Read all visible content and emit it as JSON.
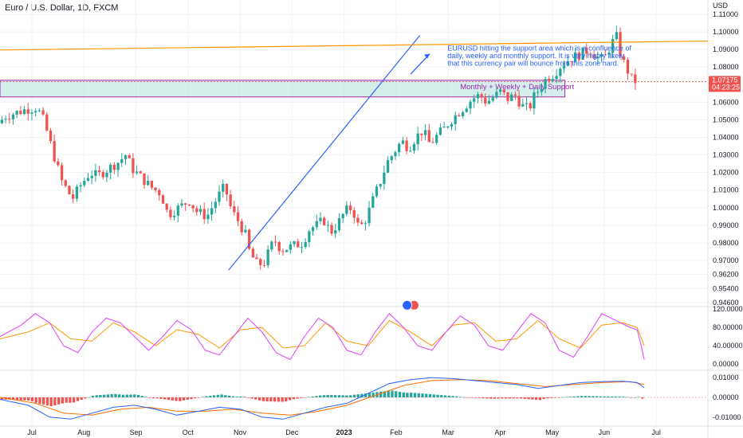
{
  "title": "Euro / U.S. Dollar, 1D, FXCM",
  "currency_label": "USD",
  "annotations": {
    "note_lines": [
      "EURUSD hitting the support area which is a confluence of",
      "daily, weekly and monthly support. It is very highly likely",
      "that this currency pair will bounce from this zone hard."
    ],
    "zone_label": "Monthly + Weekly + Daily Support",
    "price_badge": "1.07175",
    "countdown": "04:23:25"
  },
  "colors": {
    "bull": "#26a69a",
    "bear": "#ef5350",
    "trendline": "#2962ff",
    "resistance": "#ff9800",
    "zone_fill": "#b2dfdb",
    "zone_border": "#9c27b0",
    "osc_k": "#e040fb",
    "osc_d": "#ff9800",
    "macd": "#2962ff",
    "signal": "#ff6d00",
    "grid": "#f0f3fa"
  },
  "chart_data": {
    "type": "candlestick",
    "symbol": "EUR/USD",
    "timeframe": "1D",
    "x_axis_labels": [
      "Jul",
      "Aug",
      "Sep",
      "Oct",
      "Nov",
      "Dec",
      "2023",
      "Feb",
      "Mar",
      "Apr",
      "May",
      "Jun",
      "Jul"
    ],
    "price_axis": {
      "ticks": [
        "1.11000",
        "1.10000",
        "1.09000",
        "1.08000",
        "1.06000",
        "1.05000",
        "1.04000",
        "1.03000",
        "1.02000",
        "1.01000",
        "1.00000",
        "0.99000",
        "0.98000",
        "0.97000",
        "0.96200",
        "0.95400",
        "0.94600"
      ],
      "ylim": [
        0.946,
        1.11
      ]
    },
    "stoch_axis": {
      "ticks": [
        "120.00000",
        "80.00000",
        "40.00000",
        "0.00000"
      ],
      "ylim": [
        -10,
        120
      ]
    },
    "macd_axis": {
      "ticks": [
        "0.01000",
        "0.00000",
        "-0.01000"
      ],
      "ylim": [
        -0.0125,
        0.0125
      ]
    },
    "current_price": 1.07175,
    "support_zone": [
      1.063,
      1.0725
    ],
    "resistance_line": [
      1.0897,
      1.0948
    ],
    "trendline": [
      0.9645,
      1.098
    ],
    "price_path": [
      [
        0,
        1.048
      ],
      [
        0.01,
        1.052
      ],
      [
        0.025,
        1.054
      ],
      [
        0.04,
        1.056
      ],
      [
        0.055,
        1.057
      ],
      [
        0.065,
        1.049
      ],
      [
        0.08,
        1.028
      ],
      [
        0.09,
        1.015
      ],
      [
        0.105,
        1.005
      ],
      [
        0.115,
        1.012
      ],
      [
        0.13,
        1.02
      ],
      [
        0.14,
        1.018
      ],
      [
        0.155,
        1.022
      ],
      [
        0.17,
        1.026
      ],
      [
        0.18,
        1.03
      ],
      [
        0.19,
        1.022
      ],
      [
        0.2,
        1.018
      ],
      [
        0.215,
        1.012
      ],
      [
        0.23,
        1.008
      ],
      [
        0.24,
        0.996
      ],
      [
        0.255,
        1.0
      ],
      [
        0.27,
        1.004
      ],
      [
        0.28,
        0.998
      ],
      [
        0.295,
        0.995
      ],
      [
        0.31,
        1.006
      ],
      [
        0.32,
        1.012
      ],
      [
        0.33,
        0.998
      ],
      [
        0.34,
        0.992
      ],
      [
        0.35,
        0.984
      ],
      [
        0.355,
        0.975
      ],
      [
        0.365,
        0.968
      ],
      [
        0.375,
        0.968
      ],
      [
        0.39,
        0.982
      ],
      [
        0.4,
        0.976
      ],
      [
        0.415,
        0.978
      ],
      [
        0.43,
        0.98
      ],
      [
        0.44,
        0.988
      ],
      [
        0.45,
        0.99
      ],
      [
        0.46,
        0.993
      ],
      [
        0.47,
        0.986
      ],
      [
        0.48,
        0.991
      ],
      [
        0.49,
        0.998
      ],
      [
        0.5,
        1.0
      ],
      [
        0.51,
        0.988
      ],
      [
        0.52,
        0.994
      ],
      [
        0.53,
        1.005
      ],
      [
        0.54,
        1.015
      ],
      [
        0.55,
        1.026
      ],
      [
        0.56,
        1.032
      ],
      [
        0.57,
        1.038
      ],
      [
        0.58,
        1.034
      ],
      [
        0.59,
        1.04
      ],
      [
        0.6,
        1.044
      ],
      [
        0.61,
        1.036
      ],
      [
        0.62,
        1.041
      ],
      [
        0.63,
        1.045
      ],
      [
        0.64,
        1.05
      ],
      [
        0.65,
        1.054
      ],
      [
        0.66,
        1.058
      ],
      [
        0.67,
        1.062
      ],
      [
        0.68,
        1.064
      ],
      [
        0.69,
        1.06
      ],
      [
        0.7,
        1.063
      ],
      [
        0.71,
        1.066
      ],
      [
        0.72,
        1.062
      ],
      [
        0.73,
        1.064
      ],
      [
        0.74,
        1.058
      ],
      [
        0.75,
        1.056
      ],
      [
        0.755,
        1.062
      ],
      [
        0.765,
        1.068
      ],
      [
        0.775,
        1.074
      ],
      [
        0.785,
        1.076
      ],
      [
        0.795,
        1.081
      ],
      [
        0.805,
        1.084
      ],
      [
        0.815,
        1.086
      ],
      [
        0.825,
        1.088
      ],
      [
        0.835,
        1.09
      ],
      [
        0.845,
        1.086
      ],
      [
        0.855,
        1.084
      ],
      [
        0.865,
        1.092
      ],
      [
        0.873,
        1.098
      ],
      [
        0.88,
        1.086
      ],
      [
        0.888,
        1.079
      ],
      [
        0.896,
        1.072
      ]
    ],
    "stoch_path": [
      [
        0,
        60
      ],
      [
        0.03,
        85
      ],
      [
        0.05,
        110
      ],
      [
        0.07,
        90
      ],
      [
        0.09,
        40
      ],
      [
        0.11,
        25
      ],
      [
        0.13,
        70
      ],
      [
        0.15,
        100
      ],
      [
        0.17,
        90
      ],
      [
        0.19,
        60
      ],
      [
        0.21,
        30
      ],
      [
        0.23,
        60
      ],
      [
        0.25,
        95
      ],
      [
        0.27,
        75
      ],
      [
        0.29,
        30
      ],
      [
        0.31,
        20
      ],
      [
        0.33,
        60
      ],
      [
        0.35,
        100
      ],
      [
        0.37,
        70
      ],
      [
        0.39,
        25
      ],
      [
        0.41,
        10
      ],
      [
        0.43,
        60
      ],
      [
        0.45,
        100
      ],
      [
        0.47,
        80
      ],
      [
        0.49,
        30
      ],
      [
        0.51,
        20
      ],
      [
        0.53,
        70
      ],
      [
        0.55,
        110
      ],
      [
        0.57,
        80
      ],
      [
        0.59,
        40
      ],
      [
        0.61,
        30
      ],
      [
        0.63,
        70
      ],
      [
        0.65,
        105
      ],
      [
        0.67,
        85
      ],
      [
        0.69,
        40
      ],
      [
        0.71,
        30
      ],
      [
        0.73,
        70
      ],
      [
        0.75,
        110
      ],
      [
        0.77,
        90
      ],
      [
        0.79,
        30
      ],
      [
        0.81,
        15
      ],
      [
        0.83,
        60
      ],
      [
        0.85,
        110
      ],
      [
        0.87,
        95
      ],
      [
        0.89,
        80
      ],
      [
        0.9,
        75
      ],
      [
        0.905,
        45
      ],
      [
        0.91,
        10
      ]
    ],
    "stoch_d_path": [
      [
        0,
        55
      ],
      [
        0.04,
        70
      ],
      [
        0.07,
        90
      ],
      [
        0.1,
        55
      ],
      [
        0.13,
        50
      ],
      [
        0.16,
        90
      ],
      [
        0.19,
        70
      ],
      [
        0.22,
        40
      ],
      [
        0.25,
        75
      ],
      [
        0.28,
        65
      ],
      [
        0.31,
        35
      ],
      [
        0.34,
        75
      ],
      [
        0.37,
        80
      ],
      [
        0.4,
        35
      ],
      [
        0.43,
        40
      ],
      [
        0.46,
        90
      ],
      [
        0.49,
        50
      ],
      [
        0.52,
        40
      ],
      [
        0.55,
        95
      ],
      [
        0.58,
        70
      ],
      [
        0.61,
        40
      ],
      [
        0.64,
        85
      ],
      [
        0.67,
        90
      ],
      [
        0.7,
        50
      ],
      [
        0.73,
        55
      ],
      [
        0.76,
        95
      ],
      [
        0.79,
        55
      ],
      [
        0.82,
        35
      ],
      [
        0.85,
        85
      ],
      [
        0.88,
        90
      ],
      [
        0.9,
        80
      ],
      [
        0.91,
        40
      ]
    ],
    "macd_path": [
      [
        0,
        -0.001
      ],
      [
        0.04,
        -0.004
      ],
      [
        0.07,
        -0.01
      ],
      [
        0.1,
        -0.011
      ],
      [
        0.13,
        -0.008
      ],
      [
        0.16,
        -0.005
      ],
      [
        0.19,
        -0.004
      ],
      [
        0.22,
        -0.006
      ],
      [
        0.25,
        -0.009
      ],
      [
        0.28,
        -0.007
      ],
      [
        0.31,
        -0.005
      ],
      [
        0.34,
        -0.006
      ],
      [
        0.37,
        -0.01
      ],
      [
        0.4,
        -0.011
      ],
      [
        0.43,
        -0.008
      ],
      [
        0.46,
        -0.005
      ],
      [
        0.49,
        -0.003
      ],
      [
        0.52,
        0.002
      ],
      [
        0.55,
        0.007
      ],
      [
        0.58,
        0.009
      ],
      [
        0.61,
        0.01
      ],
      [
        0.64,
        0.0095
      ],
      [
        0.67,
        0.0085
      ],
      [
        0.7,
        0.0075
      ],
      [
        0.73,
        0.0065
      ],
      [
        0.76,
        0.0045
      ],
      [
        0.79,
        0.006
      ],
      [
        0.82,
        0.0075
      ],
      [
        0.85,
        0.008
      ],
      [
        0.88,
        0.0082
      ],
      [
        0.9,
        0.0075
      ],
      [
        0.91,
        0.005
      ]
    ],
    "signal_path": [
      [
        0,
        0
      ],
      [
        0.05,
        -0.003
      ],
      [
        0.09,
        -0.008
      ],
      [
        0.13,
        -0.009
      ],
      [
        0.17,
        -0.006
      ],
      [
        0.21,
        -0.005
      ],
      [
        0.25,
        -0.007
      ],
      [
        0.29,
        -0.007
      ],
      [
        0.33,
        -0.006
      ],
      [
        0.37,
        -0.008
      ],
      [
        0.41,
        -0.009
      ],
      [
        0.45,
        -0.007
      ],
      [
        0.49,
        -0.004
      ],
      [
        0.53,
        0.001
      ],
      [
        0.57,
        0.006
      ],
      [
        0.61,
        0.0085
      ],
      [
        0.65,
        0.009
      ],
      [
        0.69,
        0.0085
      ],
      [
        0.73,
        0.007
      ],
      [
        0.77,
        0.0055
      ],
      [
        0.81,
        0.0065
      ],
      [
        0.85,
        0.0075
      ],
      [
        0.89,
        0.008
      ],
      [
        0.91,
        0.0065
      ]
    ]
  }
}
